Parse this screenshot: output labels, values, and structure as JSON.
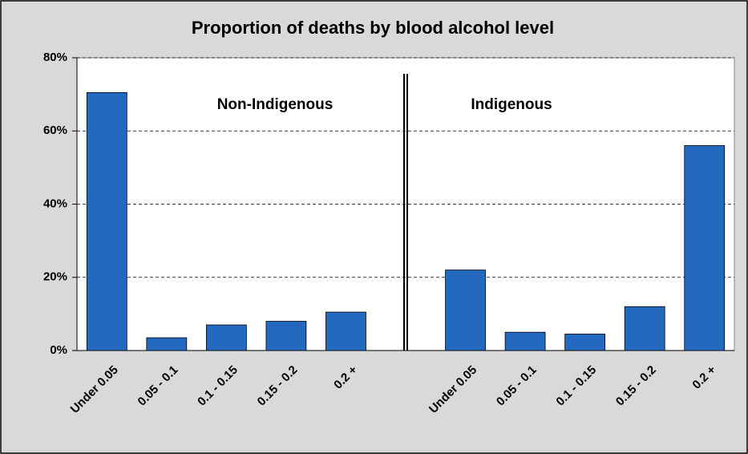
{
  "chart_data": {
    "type": "bar",
    "title": "Proportion of deaths by blood alcohol level",
    "annotations": [
      "Non-Indigenous",
      "Indigenous"
    ],
    "categories": [
      "Under 0.05",
      "0.05 - 0.1",
      "0.1 - 0.15",
      "0.15 - 0.2",
      "0.2 +",
      null,
      "Under 0.05",
      "0.05 - 0.1",
      "0.1 - 0.15",
      "0.15 - 0.2",
      "0.2 +"
    ],
    "values": [
      70.5,
      3.5,
      7,
      8,
      10.5,
      null,
      22,
      5,
      4.5,
      12,
      56
    ],
    "color": "#2369c0",
    "ylim": [
      0,
      80
    ],
    "yticks": [
      {
        "value": 0,
        "label": "0%"
      },
      {
        "value": 20,
        "label": "20%"
      },
      {
        "value": 40,
        "label": "40%"
      },
      {
        "value": 60,
        "label": "60%"
      },
      {
        "value": 80,
        "label": "80%"
      }
    ],
    "grid": true
  }
}
